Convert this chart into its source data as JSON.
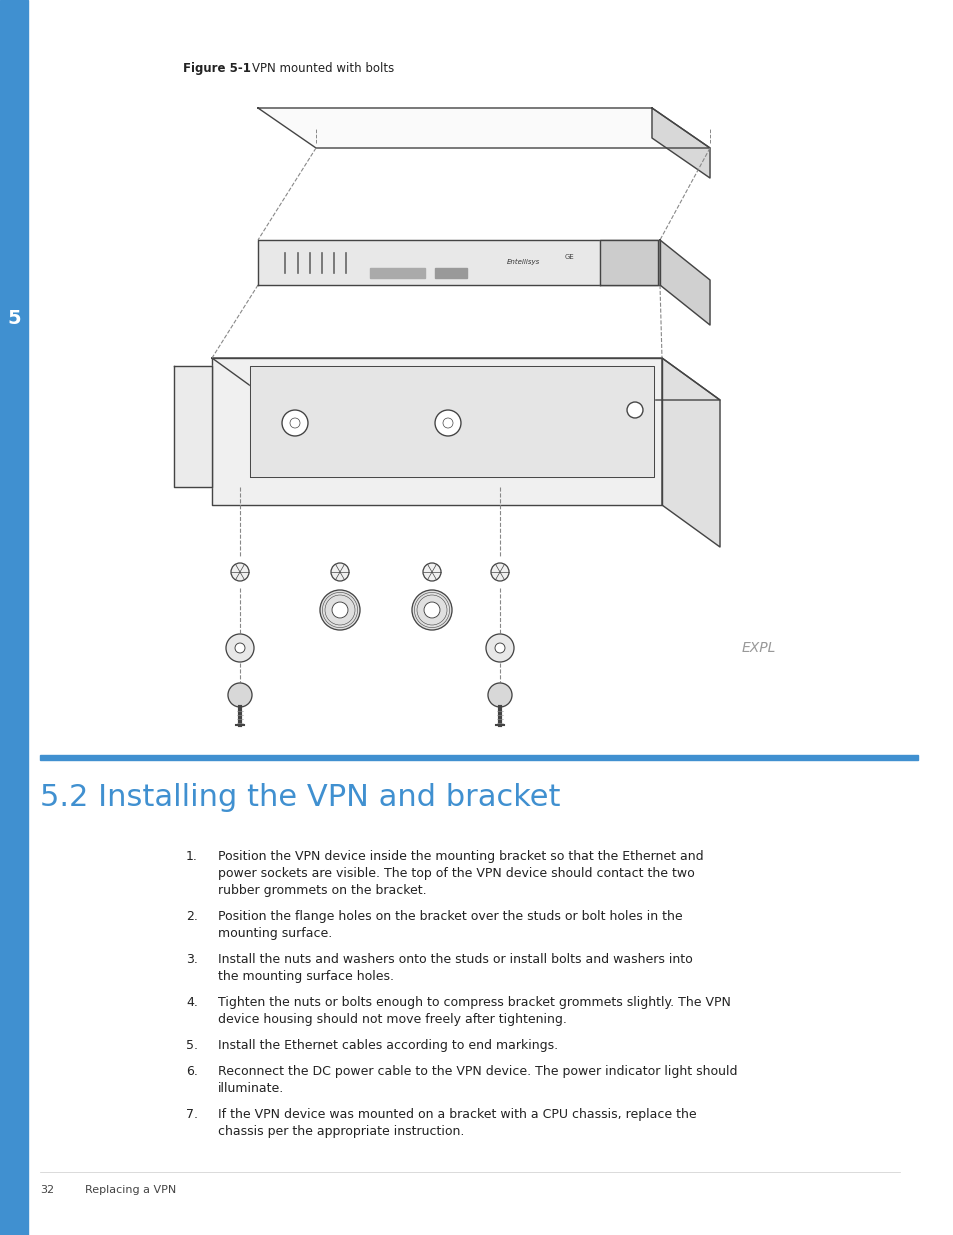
{
  "bg_color": "#ffffff",
  "figure_caption_bold": "Figure 5-1",
  "figure_caption_rest": "VPN mounted with bolts",
  "section_title": "5.2 Installing the VPN and bracket",
  "section_title_color": "#4090d0",
  "section_title_fontsize": 22,
  "blue_line_color": "#4090d0",
  "sidebar_color": "#4090d0",
  "sidebar_number": "5",
  "items": [
    {
      "num": "1.",
      "text": "Position the VPN device inside the mounting bracket so that the Ethernet and power sockets are visible. The top of the VPN device should contact the two rubber grommets on the bracket."
    },
    {
      "num": "2.",
      "text": "Position the flange holes on the bracket over the studs or bolt holes in the mounting surface."
    },
    {
      "num": "3.",
      "text": "Install the nuts and washers onto the studs or install bolts and washers into the mounting surface holes."
    },
    {
      "num": "4.",
      "text": "Tighten the nuts or bolts enough to compress bracket grommets slightly. The VPN device housing should not move freely after tightening."
    },
    {
      "num": "5.",
      "text": "Install the Ethernet cables according to end markings."
    },
    {
      "num": "6.",
      "text": "Reconnect the DC power cable to the VPN device. The power indicator light should illuminate."
    },
    {
      "num": "7.",
      "text": "If the VPN device was mounted on a bracket with a CPU chassis, replace the chassis per the appropriate instruction."
    }
  ],
  "footer_page": "32",
  "footer_text": "Replacing a VPN",
  "expl_text": "EXPL"
}
